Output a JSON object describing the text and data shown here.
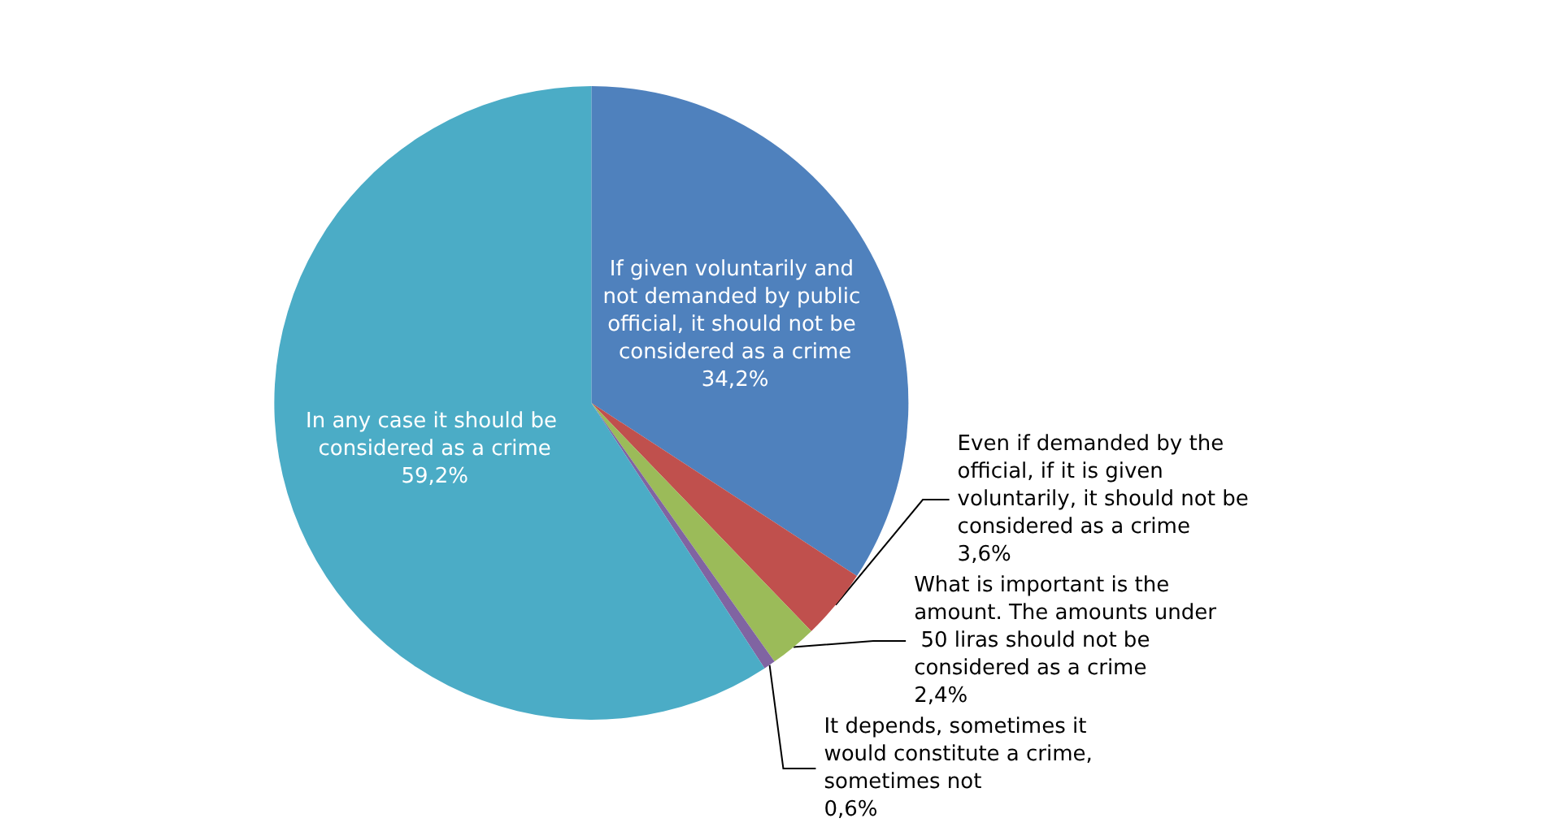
{
  "chart_data": {
    "type": "pie",
    "categories": [
      "If given voluntarily and not demanded by public official, it should not be considered as a crime",
      "Even if demanded by the official, if it is given voluntarily, it should not be considered as a crime",
      "What is important is the amount. The amounts under 50 liras should not be considered as a crime",
      "It depends, sometimes it would constitute a crime, sometimes not",
      "In any case it should be considered as a crime"
    ],
    "values": [
      34.2,
      3.6,
      2.4,
      0.6,
      59.2
    ],
    "value_labels": [
      "34,2%",
      "3,6%",
      "2,4%",
      "0,6%",
      "59,2%"
    ],
    "colors": [
      "#4f81bd",
      "#c0504d",
      "#9bbb59",
      "#8064a2",
      "#4bacc6"
    ]
  }
}
